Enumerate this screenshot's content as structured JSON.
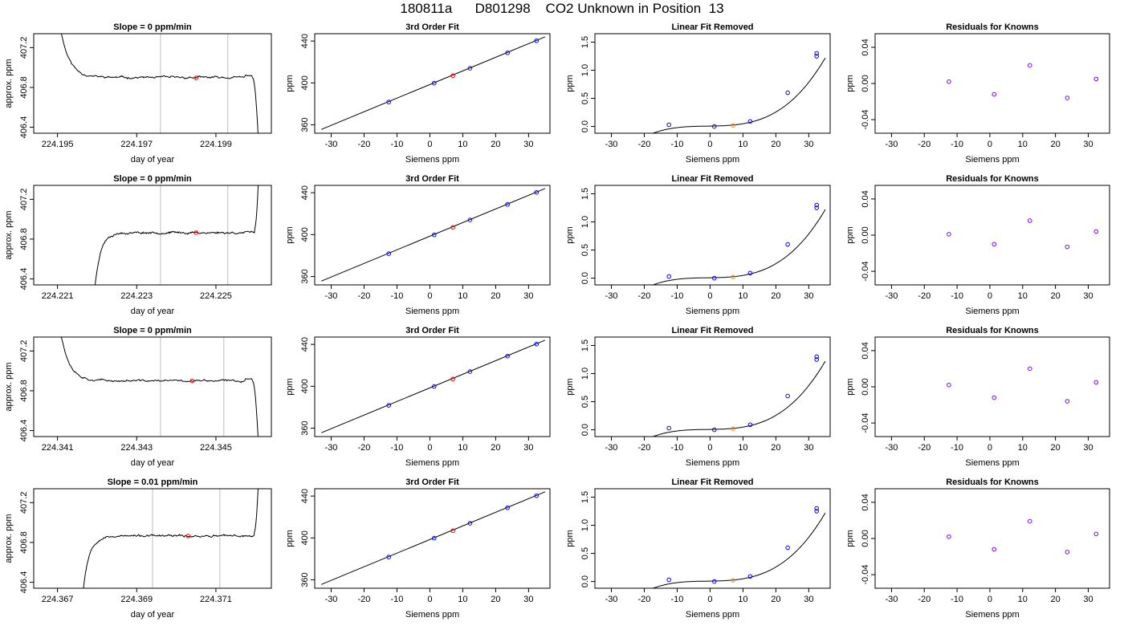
{
  "page_title": "180811a      D801298    CO2 Unknown in Position  13",
  "chart_data": [
    {
      "row": 0,
      "kind": "timeseries",
      "type": "line",
      "title": "Slope =  0  ppm/min",
      "xlabel": "day of year",
      "ylabel": "approx. ppm",
      "xticks": [
        "224.195",
        "224.197",
        "224.199"
      ],
      "xtick_values": [
        224.195,
        224.197,
        224.199
      ],
      "yticks": [
        "406.4",
        "406.8",
        "407.2"
      ],
      "ytick_values": [
        406.4,
        406.8,
        407.2
      ],
      "xlim": [
        224.1944,
        224.2004
      ],
      "ylim": [
        406.34,
        407.34
      ],
      "window_start": 224.1976,
      "window_end": 224.1993,
      "mean_x": 224.1985,
      "mean_y": 406.895,
      "curve_start": 224.195,
      "curve_end": 224.2001,
      "plateau": 406.9,
      "shape": "fall_then_drop",
      "noise_seed": 11
    },
    {
      "row": 0,
      "kind": "fit",
      "type": "scatter",
      "title": "3rd Order Fit",
      "xlabel": "Siemens ppm",
      "ylabel": "ppm",
      "xticks": [
        "-30",
        "-20",
        "-10",
        "0",
        "10",
        "20",
        "30"
      ],
      "xtick_values": [
        -30,
        -20,
        -10,
        0,
        10,
        20,
        30
      ],
      "yticks": [
        "360",
        "400",
        "440"
      ],
      "ytick_values": [
        360,
        400,
        440
      ],
      "xlim": [
        -35,
        36.5
      ],
      "ylim": [
        352,
        447
      ],
      "line": [
        [
          -33,
          355.6
        ],
        [
          35,
          444
        ]
      ],
      "known_x": [
        -12.5,
        1.3,
        12.2,
        23.6,
        32.4
      ],
      "known_y": [
        381.8,
        399.8,
        414.0,
        428.8,
        440.3
      ],
      "unknown_x": [
        7.0
      ],
      "unknown_y": [
        407.0
      ]
    },
    {
      "row": 0,
      "kind": "linres",
      "type": "scatter",
      "title": "Linear Fit Removed",
      "xlabel": "Siemens ppm",
      "ylabel": "ppm",
      "xticks": [
        "-30",
        "-20",
        "-10",
        "0",
        "10",
        "20",
        "30"
      ],
      "xtick_values": [
        -30,
        -20,
        -10,
        0,
        10,
        20,
        30
      ],
      "yticks": [
        "0.0",
        "0.5",
        "1.0",
        "1.5"
      ],
      "ytick_values": [
        0.0,
        0.5,
        1.0,
        1.5
      ],
      "xlim": [
        -35,
        36.5
      ],
      "ylim": [
        -0.12,
        1.65
      ],
      "known_x": [
        -12.5,
        1.3,
        12.2,
        23.6,
        32.4,
        32.4
      ],
      "known_y": [
        0.03,
        0.0,
        0.09,
        0.6,
        1.25,
        1.3
      ],
      "unknown_x": [
        7.0
      ],
      "unknown_y": [
        0.02
      ]
    },
    {
      "row": 0,
      "kind": "knownres",
      "type": "scatter",
      "title": "Residuals for Knowns",
      "xlabel": "Siemens ppm",
      "ylabel": "ppm",
      "xticks": [
        "-30",
        "-20",
        "-10",
        "0",
        "10",
        "20",
        "30"
      ],
      "xtick_values": [
        -30,
        -20,
        -10,
        0,
        10,
        20,
        30
      ],
      "yticks": [
        "-0.04",
        "0.00",
        "0.04"
      ],
      "ytick_values": [
        -0.04,
        0.0,
        0.04
      ],
      "xlim": [
        -35,
        36.5
      ],
      "ylim": [
        -0.055,
        0.055
      ],
      "known_x": [
        -12.5,
        1.3,
        12.2,
        23.6,
        32.4
      ],
      "known_y": [
        0.002,
        -0.012,
        0.02,
        -0.016,
        0.005
      ]
    },
    {
      "row": 1,
      "kind": "timeseries",
      "type": "line",
      "title": "Slope =  0  ppm/min",
      "xlabel": "day of year",
      "ylabel": "approx. ppm",
      "xticks": [
        "224.221",
        "224.223",
        "224.225"
      ],
      "xtick_values": [
        224.221,
        224.223,
        224.225
      ],
      "yticks": [
        "406.4",
        "406.8",
        "407.2"
      ],
      "ytick_values": [
        406.4,
        406.8,
        407.2
      ],
      "xlim": [
        224.2204,
        224.2264
      ],
      "ylim": [
        406.34,
        407.34
      ],
      "window_start": 224.2236,
      "window_end": 224.2253,
      "mean_x": 224.2245,
      "mean_y": 406.865,
      "curve_start": 224.2219,
      "curve_end": 224.2261,
      "plateau": 406.865,
      "shape": "rise_then_jump",
      "noise_seed": 23
    },
    {
      "row": 1,
      "kind": "fit",
      "type": "scatter",
      "title": "3rd Order Fit",
      "xlabel": "Siemens ppm",
      "ylabel": "ppm",
      "xticks": [
        "-30",
        "-20",
        "-10",
        "0",
        "10",
        "20",
        "30"
      ],
      "xtick_values": [
        -30,
        -20,
        -10,
        0,
        10,
        20,
        30
      ],
      "yticks": [
        "360",
        "400",
        "440"
      ],
      "ytick_values": [
        360,
        400,
        440
      ],
      "xlim": [
        -35,
        36.5
      ],
      "ylim": [
        352,
        447
      ],
      "line": [
        [
          -33,
          355.6
        ],
        [
          35,
          444
        ]
      ],
      "known_x": [
        -12.5,
        1.3,
        12.2,
        23.6,
        32.4
      ],
      "known_y": [
        381.8,
        399.8,
        414.0,
        428.8,
        440.3
      ],
      "unknown_x": [
        7.0
      ],
      "unknown_y": [
        406.9
      ]
    },
    {
      "row": 1,
      "kind": "linres",
      "type": "scatter",
      "title": "Linear Fit Removed",
      "xlabel": "Siemens ppm",
      "ylabel": "ppm",
      "xticks": [
        "-30",
        "-20",
        "-10",
        "0",
        "10",
        "20",
        "30"
      ],
      "xtick_values": [
        -30,
        -20,
        -10,
        0,
        10,
        20,
        30
      ],
      "yticks": [
        "0.0",
        "0.5",
        "1.0",
        "1.5"
      ],
      "ytick_values": [
        0.0,
        0.5,
        1.0,
        1.5
      ],
      "xlim": [
        -35,
        36.5
      ],
      "ylim": [
        -0.12,
        1.65
      ],
      "known_x": [
        -12.5,
        1.3,
        12.2,
        23.6,
        32.4,
        32.4
      ],
      "known_y": [
        0.03,
        0.0,
        0.09,
        0.6,
        1.25,
        1.3
      ],
      "unknown_x": [
        7.0
      ],
      "unknown_y": [
        0.02
      ]
    },
    {
      "row": 1,
      "kind": "knownres",
      "type": "scatter",
      "title": "Residuals for Knowns",
      "xlabel": "Siemens ppm",
      "ylabel": "ppm",
      "xticks": [
        "-30",
        "-20",
        "-10",
        "0",
        "10",
        "20",
        "30"
      ],
      "xtick_values": [
        -30,
        -20,
        -10,
        0,
        10,
        20,
        30
      ],
      "yticks": [
        "-0.04",
        "0.00",
        "0.04"
      ],
      "ytick_values": [
        -0.04,
        0.0,
        0.04
      ],
      "xlim": [
        -35,
        36.5
      ],
      "ylim": [
        -0.055,
        0.055
      ],
      "known_x": [
        -12.5,
        1.3,
        12.2,
        23.6,
        32.4
      ],
      "known_y": [
        0.001,
        -0.01,
        0.016,
        -0.013,
        0.004
      ]
    },
    {
      "row": 2,
      "kind": "timeseries",
      "type": "line",
      "title": "Slope =  0  ppm/min",
      "xlabel": "day of year",
      "ylabel": "approx. ppm",
      "xticks": [
        "224.341",
        "224.343",
        "224.345"
      ],
      "xtick_values": [
        224.341,
        224.343,
        224.345
      ],
      "yticks": [
        "406.4",
        "406.8",
        "407.2"
      ],
      "ytick_values": [
        406.4,
        406.8,
        407.2
      ],
      "xlim": [
        224.3404,
        224.3464
      ],
      "ylim": [
        406.34,
        407.34
      ],
      "window_start": 224.3436,
      "window_end": 224.3452,
      "mean_x": 224.3444,
      "mean_y": 406.9,
      "curve_start": 224.341,
      "curve_end": 224.3461,
      "plateau": 406.9,
      "shape": "fall_then_drop",
      "noise_seed": 37
    },
    {
      "row": 2,
      "kind": "fit",
      "type": "scatter",
      "title": "3rd Order Fit",
      "xlabel": "Siemens ppm",
      "ylabel": "ppm",
      "xticks": [
        "-30",
        "-20",
        "-10",
        "0",
        "10",
        "20",
        "30"
      ],
      "xtick_values": [
        -30,
        -20,
        -10,
        0,
        10,
        20,
        30
      ],
      "yticks": [
        "360",
        "400",
        "440"
      ],
      "ytick_values": [
        360,
        400,
        440
      ],
      "xlim": [
        -35,
        36.5
      ],
      "ylim": [
        352,
        447
      ],
      "line": [
        [
          -33,
          355.6
        ],
        [
          35,
          444
        ]
      ],
      "known_x": [
        -12.5,
        1.3,
        12.2,
        23.6,
        32.4
      ],
      "known_y": [
        381.8,
        399.8,
        414.0,
        428.8,
        440.3
      ],
      "unknown_x": [
        7.0
      ],
      "unknown_y": [
        407.0
      ]
    },
    {
      "row": 2,
      "kind": "linres",
      "type": "scatter",
      "title": "Linear Fit Removed",
      "xlabel": "Siemens ppm",
      "ylabel": "ppm",
      "xticks": [
        "-30",
        "-20",
        "-10",
        "0",
        "10",
        "20",
        "30"
      ],
      "xtick_values": [
        -30,
        -20,
        -10,
        0,
        10,
        20,
        30
      ],
      "yticks": [
        "0.0",
        "0.5",
        "1.0",
        "1.5"
      ],
      "ytick_values": [
        0.0,
        0.5,
        1.0,
        1.5
      ],
      "xlim": [
        -35,
        36.5
      ],
      "ylim": [
        -0.12,
        1.65
      ],
      "known_x": [
        -12.5,
        1.3,
        12.2,
        23.6,
        32.4,
        32.4
      ],
      "known_y": [
        0.03,
        0.0,
        0.09,
        0.6,
        1.25,
        1.3
      ],
      "unknown_x": [
        7.0
      ],
      "unknown_y": [
        0.02
      ]
    },
    {
      "row": 2,
      "kind": "knownres",
      "type": "scatter",
      "title": "Residuals for Knowns",
      "xlabel": "Siemens ppm",
      "ylabel": "ppm",
      "xticks": [
        "-30",
        "-20",
        "-10",
        "0",
        "10",
        "20",
        "30"
      ],
      "xtick_values": [
        -30,
        -20,
        -10,
        0,
        10,
        20,
        30
      ],
      "yticks": [
        "-0.04",
        "0.00",
        "0.04"
      ],
      "ytick_values": [
        -0.04,
        0.0,
        0.04
      ],
      "xlim": [
        -35,
        36.5
      ],
      "ylim": [
        -0.055,
        0.055
      ],
      "known_x": [
        -12.5,
        1.3,
        12.2,
        23.6,
        32.4
      ],
      "known_y": [
        0.002,
        -0.012,
        0.02,
        -0.016,
        0.005
      ]
    },
    {
      "row": 3,
      "kind": "timeseries",
      "type": "line",
      "title": "Slope =  0.01  ppm/min",
      "xlabel": "day of year",
      "ylabel": "approx. ppm",
      "xticks": [
        "224.367",
        "224.369",
        "224.371"
      ],
      "xtick_values": [
        224.367,
        224.369,
        224.371
      ],
      "yticks": [
        "406.4",
        "406.8",
        "407.2"
      ],
      "ytick_values": [
        406.4,
        406.8,
        407.2
      ],
      "xlim": [
        224.3664,
        224.3724
      ],
      "ylim": [
        406.34,
        407.34
      ],
      "window_start": 224.3694,
      "window_end": 224.3711,
      "mean_x": 224.3703,
      "mean_y": 406.865,
      "curve_start": 224.3676,
      "curve_end": 224.3721,
      "plateau": 406.865,
      "shape": "rise_then_jump",
      "noise_seed": 53
    },
    {
      "row": 3,
      "kind": "fit",
      "type": "scatter",
      "title": "3rd Order Fit",
      "xlabel": "Siemens ppm",
      "ylabel": "ppm",
      "xticks": [
        "-30",
        "-20",
        "-10",
        "0",
        "10",
        "20",
        "30"
      ],
      "xtick_values": [
        -30,
        -20,
        -10,
        0,
        10,
        20,
        30
      ],
      "yticks": [
        "360",
        "400",
        "440"
      ],
      "ytick_values": [
        360,
        400,
        440
      ],
      "xlim": [
        -35,
        36.5
      ],
      "ylim": [
        352,
        447
      ],
      "line": [
        [
          -33,
          355.6
        ],
        [
          35,
          444
        ]
      ],
      "known_x": [
        -12.5,
        1.3,
        12.2,
        23.6,
        32.4
      ],
      "known_y": [
        381.8,
        399.8,
        414.0,
        428.8,
        440.3
      ],
      "unknown_x": [
        7.0
      ],
      "unknown_y": [
        406.9
      ]
    },
    {
      "row": 3,
      "kind": "linres",
      "type": "scatter",
      "title": "Linear Fit Removed",
      "xlabel": "Siemens ppm",
      "ylabel": "ppm",
      "xticks": [
        "-30",
        "-20",
        "-10",
        "0",
        "10",
        "20",
        "30"
      ],
      "xtick_values": [
        -30,
        -20,
        -10,
        0,
        10,
        20,
        30
      ],
      "yticks": [
        "0.0",
        "0.5",
        "1.0",
        "1.5"
      ],
      "ytick_values": [
        0.0,
        0.5,
        1.0,
        1.5
      ],
      "xlim": [
        -35,
        36.5
      ],
      "ylim": [
        -0.12,
        1.65
      ],
      "known_x": [
        -12.5,
        1.3,
        12.2,
        23.6,
        32.4,
        32.4
      ],
      "known_y": [
        0.03,
        0.0,
        0.09,
        0.6,
        1.25,
        1.3
      ],
      "unknown_x": [
        7.0
      ],
      "unknown_y": [
        0.02
      ]
    },
    {
      "row": 3,
      "kind": "knownres",
      "type": "scatter",
      "title": "Residuals for Knowns",
      "xlabel": "Siemens ppm",
      "ylabel": "ppm",
      "xticks": [
        "-30",
        "-20",
        "-10",
        "0",
        "10",
        "20",
        "30"
      ],
      "xtick_values": [
        -30,
        -20,
        -10,
        0,
        10,
        20,
        30
      ],
      "yticks": [
        "-0.04",
        "0.00",
        "0.04"
      ],
      "ytick_values": [
        -0.04,
        0.0,
        0.04
      ],
      "xlim": [
        -35,
        36.5
      ],
      "ylim": [
        -0.055,
        0.055
      ],
      "known_x": [
        -12.5,
        1.3,
        12.2,
        23.6,
        32.4
      ],
      "known_y": [
        0.002,
        -0.012,
        0.019,
        -0.015,
        0.005
      ]
    }
  ],
  "colors": {
    "known": "#0000ff",
    "unknown": "#ff0000",
    "unknown_linres": "#ff8c00",
    "residual": "#8000ff",
    "window_line": "#bebebe",
    "curve": "#000000"
  }
}
